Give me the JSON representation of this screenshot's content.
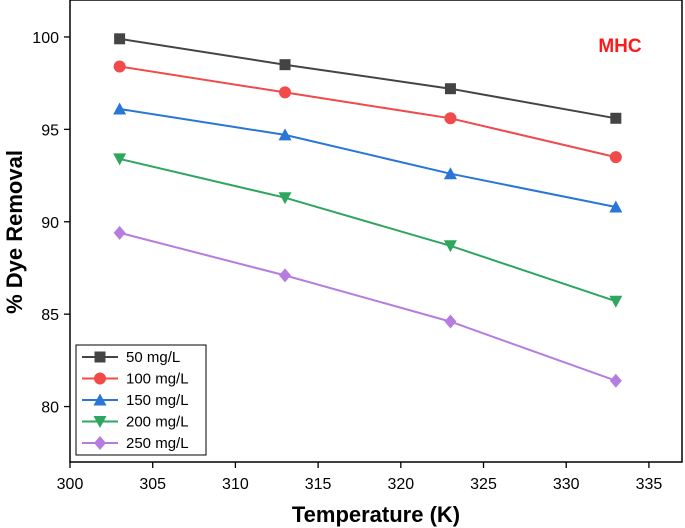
{
  "chart_data": {
    "type": "line",
    "title": "",
    "annotation": "MHC",
    "annotation_color": "#ff1a1a",
    "xlabel": "Temperature (K)",
    "ylabel": "% Dye Removal",
    "xlim": [
      300,
      337
    ],
    "ylim": [
      77,
      102
    ],
    "xticks": [
      300,
      305,
      310,
      315,
      320,
      325,
      330,
      335
    ],
    "yticks": [
      80,
      85,
      90,
      95,
      100
    ],
    "grid": false,
    "legend_position": "bottom-left",
    "x": [
      303,
      313,
      323,
      333
    ],
    "series": [
      {
        "name": "50 mg/L",
        "values": [
          99.9,
          98.5,
          97.2,
          95.6
        ],
        "color": "#444444",
        "marker": "square"
      },
      {
        "name": "100 mg/L",
        "values": [
          98.4,
          97.0,
          95.6,
          93.5
        ],
        "color": "#f04a4a",
        "marker": "circle"
      },
      {
        "name": "150 mg/L",
        "values": [
          96.1,
          94.7,
          92.6,
          90.8
        ],
        "color": "#2a75d8",
        "marker": "triangle-up"
      },
      {
        "name": "200 mg/L",
        "values": [
          93.4,
          91.3,
          88.7,
          85.7
        ],
        "color": "#2fa65f",
        "marker": "triangle-down"
      },
      {
        "name": "250 mg/L",
        "values": [
          89.4,
          87.1,
          84.6,
          81.4
        ],
        "color": "#b57de0",
        "marker": "diamond"
      }
    ]
  }
}
